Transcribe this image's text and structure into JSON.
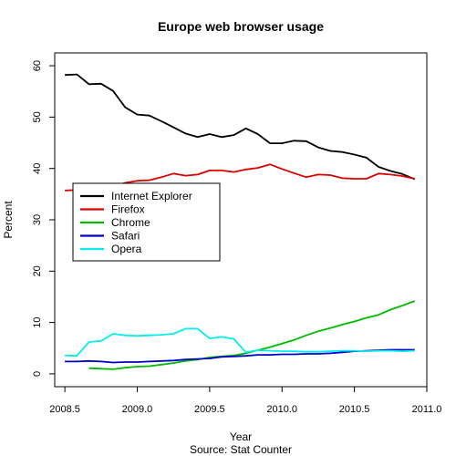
{
  "chart_data": {
    "type": "line",
    "title": "Europe web browser usage",
    "xlabel": "Year",
    "ylabel": "Percent",
    "source": "Source: Stat Counter",
    "xlim": [
      2008.43,
      2011.0
    ],
    "ylim": [
      -2.5,
      62.5
    ],
    "x_ticks": [
      2008.5,
      2009.0,
      2009.5,
      2010.0,
      2010.5,
      2011.0
    ],
    "x_tick_labels": [
      "2008.5",
      "2009.0",
      "2009.5",
      "2010.0",
      "2010.5",
      "2011.0"
    ],
    "y_ticks": [
      0,
      10,
      20,
      30,
      40,
      50,
      60
    ],
    "y_tick_labels": [
      "0",
      "10",
      "20",
      "30",
      "40",
      "50",
      "60"
    ],
    "legend_position": "left-middle",
    "series": [
      {
        "name": "Internet Explorer",
        "color": "#000000",
        "x": [
          2008.5,
          2008.583,
          2008.667,
          2008.75,
          2008.833,
          2008.917,
          2009.0,
          2009.083,
          2009.167,
          2009.25,
          2009.333,
          2009.417,
          2009.5,
          2009.583,
          2009.667,
          2009.75,
          2009.833,
          2009.917,
          2010.0,
          2010.083,
          2010.167,
          2010.25,
          2010.333,
          2010.417,
          2010.5,
          2010.583,
          2010.667,
          2010.75,
          2010.833,
          2010.917
        ],
        "y": [
          58.2,
          58.3,
          56.4,
          56.5,
          55.1,
          51.9,
          50.5,
          50.3,
          49.2,
          48.0,
          46.8,
          46.1,
          46.7,
          46.1,
          46.5,
          47.8,
          46.7,
          44.9,
          44.9,
          45.4,
          45.3,
          44.1,
          43.4,
          43.2,
          42.7,
          42.1,
          40.3,
          39.5,
          38.9,
          37.9
        ]
      },
      {
        "name": "Firefox",
        "color": "#dd0000",
        "x": [
          2008.5,
          2008.583,
          2008.667,
          2008.75,
          2008.833,
          2008.917,
          2009.0,
          2009.083,
          2009.167,
          2009.25,
          2009.333,
          2009.417,
          2009.5,
          2009.583,
          2009.667,
          2009.75,
          2009.833,
          2009.917,
          2010.0,
          2010.083,
          2010.167,
          2010.25,
          2010.333,
          2010.417,
          2010.5,
          2010.583,
          2010.667,
          2010.75,
          2010.833,
          2010.917
        ],
        "y": [
          35.7,
          35.8,
          36.0,
          36.2,
          36.5,
          37.2,
          37.6,
          37.7,
          38.3,
          39.0,
          38.6,
          38.8,
          39.6,
          39.6,
          39.3,
          39.8,
          40.1,
          40.8,
          39.9,
          39.1,
          38.3,
          38.8,
          38.7,
          38.1,
          38.0,
          38.0,
          39.0,
          38.8,
          38.5,
          38.0
        ]
      },
      {
        "name": "Chrome",
        "color": "#00bb00",
        "x": [
          2008.667,
          2008.75,
          2008.833,
          2008.917,
          2009.0,
          2009.083,
          2009.167,
          2009.25,
          2009.333,
          2009.417,
          2009.5,
          2009.583,
          2009.667,
          2009.75,
          2009.833,
          2009.917,
          2010.0,
          2010.083,
          2010.167,
          2010.25,
          2010.333,
          2010.417,
          2010.5,
          2010.583,
          2010.667,
          2010.75,
          2010.833,
          2010.917
        ],
        "y": [
          1.1,
          1.0,
          0.9,
          1.2,
          1.4,
          1.5,
          1.8,
          2.1,
          2.5,
          2.8,
          3.2,
          3.4,
          3.6,
          4.0,
          4.6,
          5.2,
          5.9,
          6.6,
          7.5,
          8.3,
          8.9,
          9.6,
          10.2,
          10.9,
          11.5,
          12.5,
          13.3,
          14.2
        ]
      },
      {
        "name": "Safari",
        "color": "#0000cc",
        "x": [
          2008.5,
          2008.583,
          2008.667,
          2008.75,
          2008.833,
          2008.917,
          2009.0,
          2009.083,
          2009.167,
          2009.25,
          2009.333,
          2009.417,
          2009.5,
          2009.583,
          2009.667,
          2009.75,
          2009.833,
          2009.917,
          2010.0,
          2010.083,
          2010.167,
          2010.25,
          2010.333,
          2010.417,
          2010.5,
          2010.583,
          2010.667,
          2010.75,
          2010.833,
          2010.917
        ],
        "y": [
          2.4,
          2.4,
          2.5,
          2.4,
          2.2,
          2.3,
          2.3,
          2.4,
          2.5,
          2.6,
          2.8,
          2.9,
          3.0,
          3.3,
          3.4,
          3.5,
          3.7,
          3.7,
          3.8,
          3.8,
          3.9,
          3.9,
          4.0,
          4.2,
          4.4,
          4.5,
          4.6,
          4.7,
          4.7,
          4.7
        ]
      },
      {
        "name": "Opera",
        "color": "#00eeee",
        "x": [
          2008.5,
          2008.583,
          2008.667,
          2008.75,
          2008.833,
          2008.917,
          2009.0,
          2009.083,
          2009.167,
          2009.25,
          2009.333,
          2009.417,
          2009.5,
          2009.583,
          2009.667,
          2009.75,
          2009.833,
          2009.917,
          2010.0,
          2010.083,
          2010.167,
          2010.25,
          2010.333,
          2010.417,
          2010.5,
          2010.583,
          2010.667,
          2010.75,
          2010.833,
          2010.917
        ],
        "y": [
          3.6,
          3.5,
          6.2,
          6.4,
          7.8,
          7.5,
          7.4,
          7.5,
          7.6,
          7.8,
          8.8,
          8.8,
          6.9,
          7.2,
          6.8,
          4.2,
          4.6,
          4.5,
          4.4,
          4.4,
          4.3,
          4.3,
          4.4,
          4.5,
          4.5,
          4.4,
          4.5,
          4.5,
          4.4,
          4.5
        ]
      }
    ]
  }
}
